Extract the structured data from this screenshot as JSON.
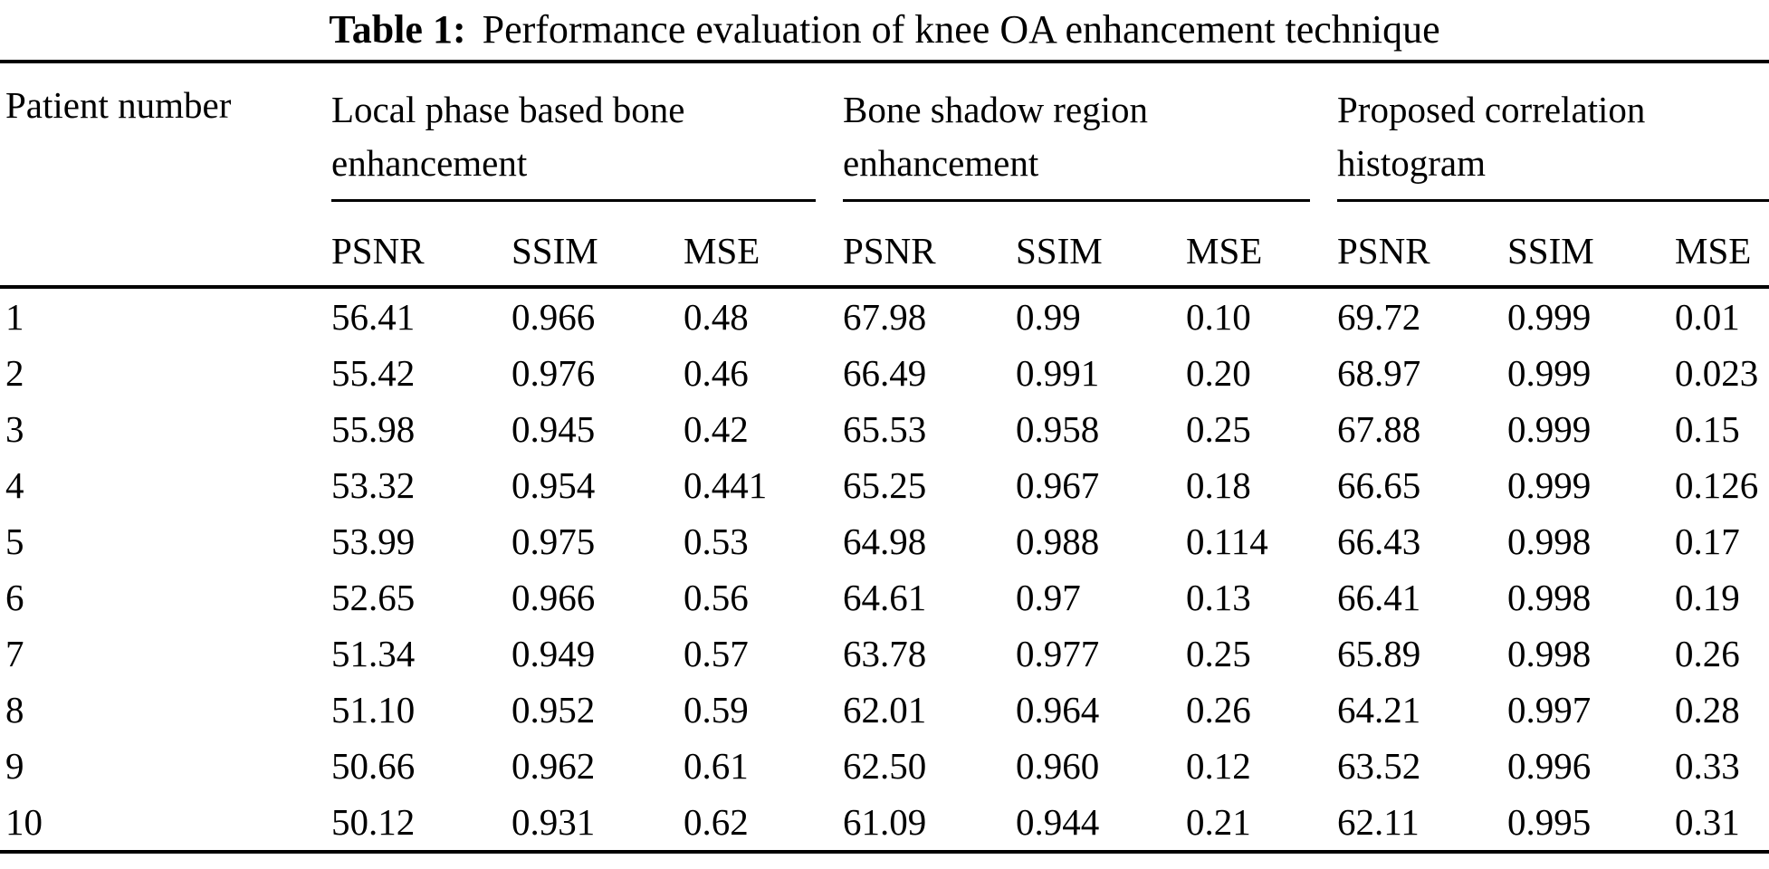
{
  "colors": {
    "text": "#000000",
    "background": "#ffffff",
    "rule": "#000000"
  },
  "table": {
    "caption": {
      "label": "Table 1:",
      "text": "Performance evaluation of knee OA enhancement technique"
    },
    "row_header": "Patient number",
    "groups": [
      {
        "label": "Local phase based bone enhancement",
        "metrics": [
          "PSNR",
          "SSIM",
          "MSE"
        ]
      },
      {
        "label": "Bone shadow region enhancement",
        "metrics": [
          "PSNR",
          "SSIM",
          "MSE"
        ]
      },
      {
        "label": "Proposed correlation histogram",
        "metrics": [
          "PSNR",
          "SSIM",
          "MSE"
        ]
      }
    ],
    "rows": [
      {
        "patient": "1",
        "values": [
          "56.41",
          "0.966",
          "0.48",
          "67.98",
          "0.99",
          "0.10",
          "69.72",
          "0.999",
          "0.01"
        ]
      },
      {
        "patient": "2",
        "values": [
          "55.42",
          "0.976",
          "0.46",
          "66.49",
          "0.991",
          "0.20",
          "68.97",
          "0.999",
          "0.023"
        ]
      },
      {
        "patient": "3",
        "values": [
          "55.98",
          "0.945",
          "0.42",
          "65.53",
          "0.958",
          "0.25",
          "67.88",
          "0.999",
          "0.15"
        ]
      },
      {
        "patient": "4",
        "values": [
          "53.32",
          "0.954",
          "0.441",
          "65.25",
          "0.967",
          "0.18",
          "66.65",
          "0.999",
          "0.126"
        ]
      },
      {
        "patient": "5",
        "values": [
          "53.99",
          "0.975",
          "0.53",
          "64.98",
          "0.988",
          "0.114",
          "66.43",
          "0.998",
          "0.17"
        ]
      },
      {
        "patient": "6",
        "values": [
          "52.65",
          "0.966",
          "0.56",
          "64.61",
          "0.97",
          "0.13",
          "66.41",
          "0.998",
          "0.19"
        ]
      },
      {
        "patient": "7",
        "values": [
          "51.34",
          "0.949",
          "0.57",
          "63.78",
          "0.977",
          "0.25",
          "65.89",
          "0.998",
          "0.26"
        ]
      },
      {
        "patient": "8",
        "values": [
          "51.10",
          "0.952",
          "0.59",
          "62.01",
          "0.964",
          "0.26",
          "64.21",
          "0.997",
          "0.28"
        ]
      },
      {
        "patient": "9",
        "values": [
          "50.66",
          "0.962",
          "0.61",
          "62.50",
          "0.960",
          "0.12",
          "63.52",
          "0.996",
          "0.33"
        ]
      },
      {
        "patient": "10",
        "values": [
          "50.12",
          "0.931",
          "0.62",
          "61.09",
          "0.944",
          "0.21",
          "62.11",
          "0.995",
          "0.31"
        ]
      }
    ]
  }
}
